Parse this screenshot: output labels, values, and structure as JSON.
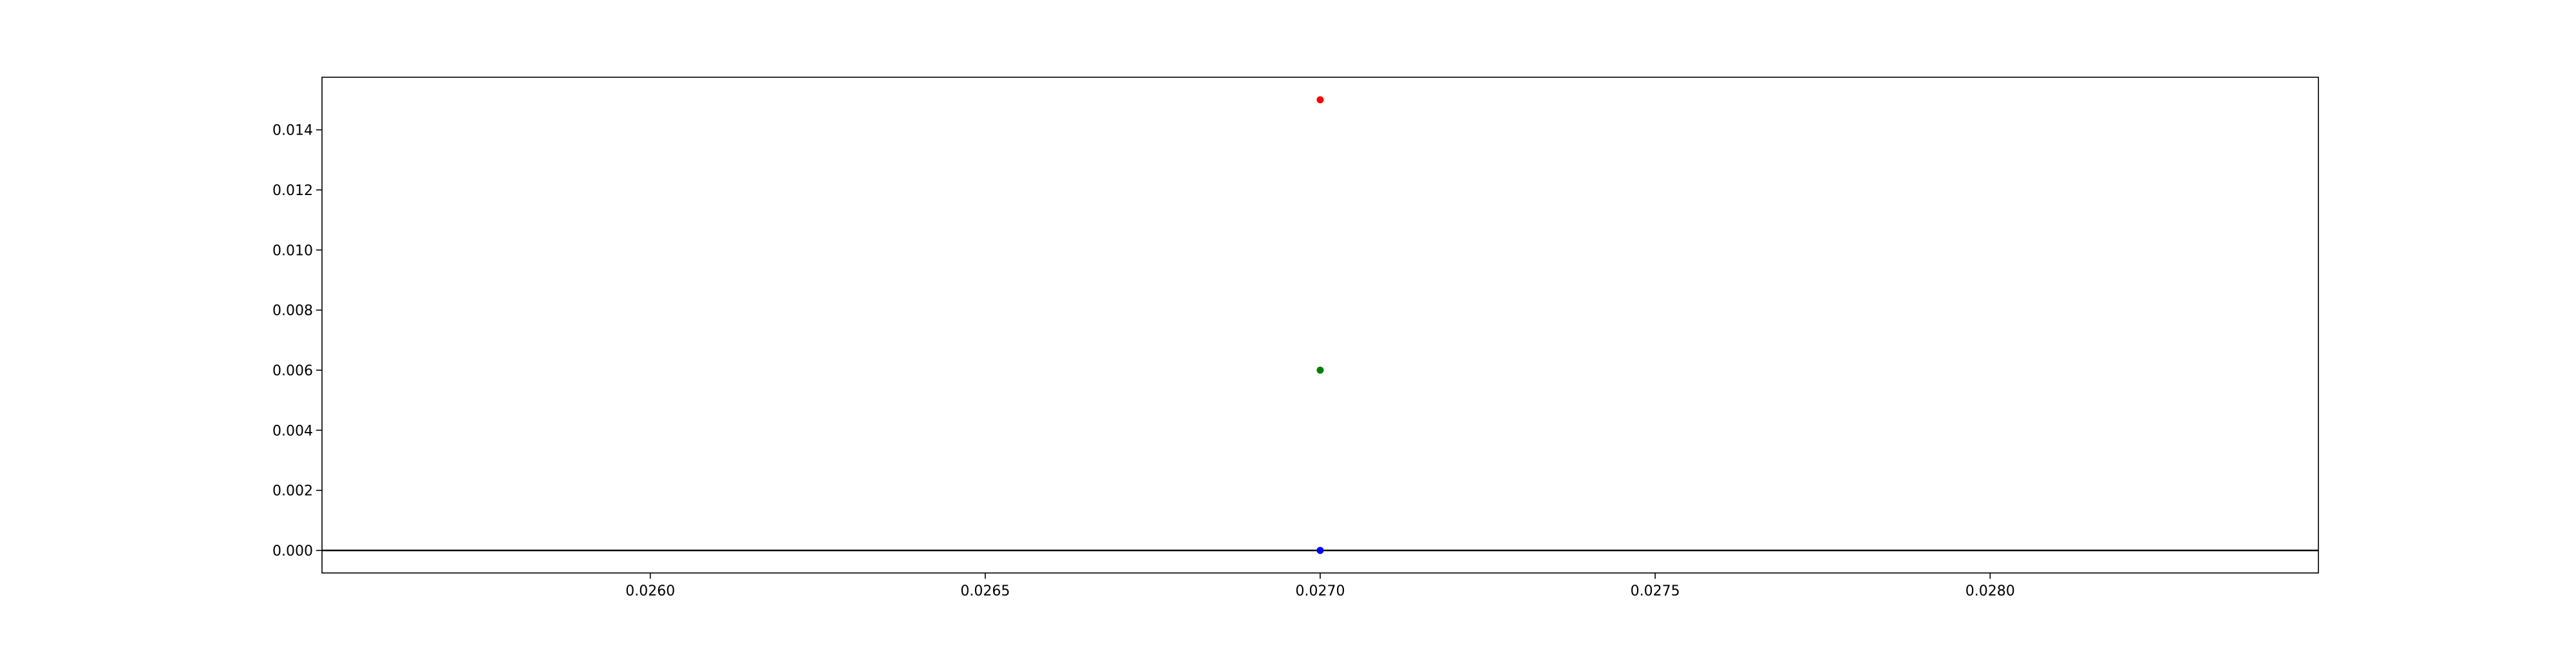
{
  "chart_data": {
    "type": "scatter",
    "title": "",
    "xlabel": "",
    "ylabel": "",
    "xlim": [
      0.02551,
      0.02849
    ],
    "ylim": [
      -0.00075,
      0.01575
    ],
    "x_ticks": [
      0.026,
      0.0265,
      0.027,
      0.0275,
      0.028
    ],
    "x_tick_labels": [
      "0.0260",
      "0.0265",
      "0.0270",
      "0.0275",
      "0.0280"
    ],
    "y_ticks": [
      0.0,
      0.002,
      0.004,
      0.006,
      0.008,
      0.01,
      0.012,
      0.014
    ],
    "y_tick_labels": [
      "0.000",
      "0.002",
      "0.004",
      "0.006",
      "0.008",
      "0.010",
      "0.012",
      "0.014"
    ],
    "grid": false,
    "reference_line": {
      "y": 0.0,
      "color": "#000000"
    },
    "series": [
      {
        "x": [
          0.027
        ],
        "y": [
          0.015
        ],
        "color": "#ff0000"
      },
      {
        "x": [
          0.027
        ],
        "y": [
          0.006
        ],
        "color": "#008000"
      },
      {
        "x": [
          0.027
        ],
        "y": [
          0.0
        ],
        "color": "#0000ff"
      }
    ]
  }
}
